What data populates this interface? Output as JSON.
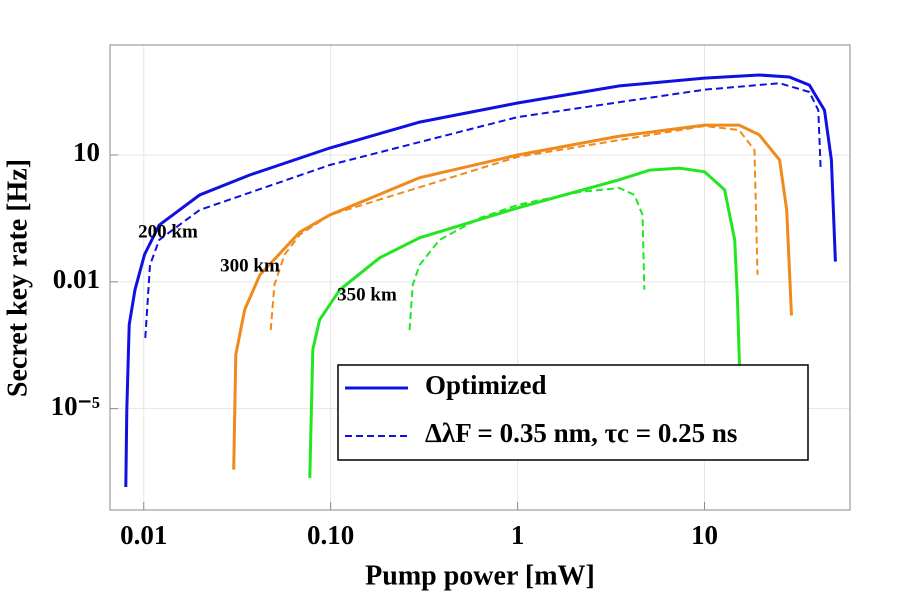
{
  "chart_data": {
    "type": "line",
    "log_x": true,
    "log_y": true,
    "grid": true,
    "xlabel": "Pump power [mW]",
    "ylabel": "Secret key rate [Hz]",
    "xlim": [
      0.0066,
      60
    ],
    "ylim": [
      4e-08,
      4000
    ],
    "xticks": [
      0.01,
      {
        "value": 0.1,
        "label": "0.10"
      },
      1,
      10
    ],
    "yticks": [
      {
        "value": 1e-05,
        "label": "10⁻⁵"
      },
      0.01,
      10
    ],
    "annotations": [
      "200 km",
      "300 km",
      "350 km"
    ],
    "legend_position": "lower right",
    "legend": [
      {
        "label": "Optimized",
        "style": "solid",
        "color": "#1010e0"
      },
      {
        "label": "ΔλF = 0.35 nm, τc = 0.25 ns",
        "style": "dashed",
        "color": "#1010e0"
      }
    ],
    "series": [
      {
        "style": "solid",
        "color": "#1010e0",
        "x": [
          0.00802,
          0.00812,
          0.00836,
          0.00898,
          0.0101,
          0.0121,
          0.0199,
          0.0369,
          0.0989,
          0.299,
          1,
          3.51,
          10,
          19.6,
          28.4,
          36.4,
          43.8,
          47.7,
          50.1
        ],
        "values": [
          1.4e-07,
          9.3e-06,
          0.00096,
          0.0065,
          0.044,
          0.22,
          1.13,
          3.37,
          14.6,
          60,
          170,
          430,
          660,
          780,
          700,
          450,
          115,
          7.6,
          0.03
        ]
      },
      {
        "style": "dashed",
        "color": "#1010e0",
        "x": [
          0.0102,
          0.0108,
          0.0121,
          0.0199,
          0.0989,
          1,
          10,
          25.2,
          36.4,
          40.6,
          41.8
        ],
        "values": [
          0.00047,
          0.025,
          0.098,
          0.5,
          5.8,
          79,
          350,
          500,
          310,
          115,
          4.4
        ]
      },
      {
        "style": "solid",
        "color": "#f08a1c",
        "x": [
          0.0303,
          0.0311,
          0.0347,
          0.0418,
          0.0684,
          0.0989,
          0.299,
          1,
          3.51,
          10,
          15.3,
          19.6,
          25.2,
          27.5,
          29.2
        ],
        "values": [
          3.6e-07,
          0.00019,
          0.0022,
          0.0146,
          0.15,
          0.38,
          2.9,
          10,
          28,
          51,
          51,
          30,
          7.6,
          0.5,
          0.0016
        ]
      },
      {
        "style": "dashed",
        "color": "#f08a1c",
        "x": [
          0.0478,
          0.05,
          0.0567,
          0.0684,
          0.0989,
          1,
          10,
          15.3,
          18.5,
          19.2
        ],
        "values": [
          0.00072,
          0.0085,
          0.044,
          0.13,
          0.38,
          9,
          48.5,
          39,
          13,
          0.0146
        ]
      },
      {
        "style": "solid",
        "color": "#22e622",
        "x": [
          0.0773,
          0.0802,
          0.0873,
          0.112,
          0.183,
          0.299,
          1,
          3.51,
          5.09,
          7.34,
          10,
          12.8,
          14.5,
          15,
          15.4
        ],
        "values": [
          2.3e-07,
          0.00025,
          0.00126,
          0.0065,
          0.037,
          0.11,
          0.56,
          2.6,
          4.4,
          4.9,
          4,
          1.5,
          0.098,
          0.0037,
          8.3e-05
        ]
      },
      {
        "style": "dashed",
        "color": "#22e622",
        "x": [
          0.264,
          0.275,
          0.299,
          0.382,
          0.626,
          1,
          2.14,
          3.51,
          4.22,
          4.66,
          4.77
        ],
        "values": [
          0.00072,
          0.0085,
          0.025,
          0.098,
          0.32,
          0.66,
          1.33,
          1.66,
          1.13,
          0.38,
          0.0065
        ]
      }
    ]
  }
}
